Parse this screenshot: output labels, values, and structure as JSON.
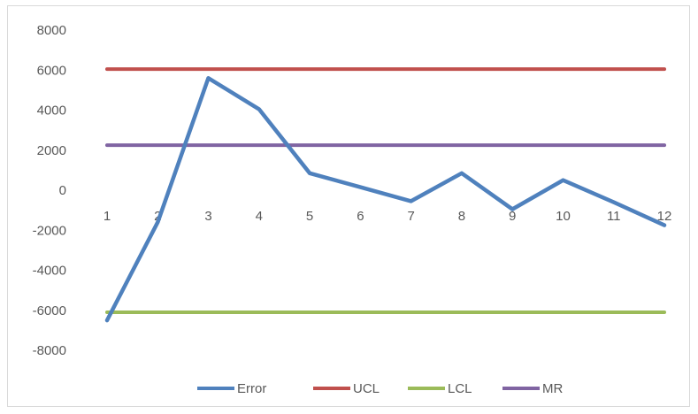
{
  "chart_data": {
    "type": "line",
    "title": "",
    "xlabel": "",
    "ylabel": "",
    "categories": [
      "1",
      "2",
      "3",
      "4",
      "5",
      "6",
      "7",
      "8",
      "9",
      "10",
      "11",
      "12"
    ],
    "ylim": [
      -8000,
      8000
    ],
    "yticks": [
      "8000",
      "6000",
      "4000",
      "2000",
      "0",
      "-2000",
      "-4000",
      "-6000",
      "-8000"
    ],
    "grid": false,
    "legend_position": "bottom",
    "series": [
      {
        "name": "Error",
        "color": "#4f81bd",
        "values": [
          -6500,
          -1600,
          5600,
          4050,
          850,
          150,
          -550,
          850,
          -950,
          500,
          -600,
          -1750
        ]
      },
      {
        "name": "UCL",
        "color": "#c0504d",
        "values": [
          6050,
          6050,
          6050,
          6050,
          6050,
          6050,
          6050,
          6050,
          6050,
          6050,
          6050,
          6050
        ]
      },
      {
        "name": "LCL",
        "color": "#9bbb59",
        "values": [
          -6100,
          -6100,
          -6100,
          -6100,
          -6100,
          -6100,
          -6100,
          -6100,
          -6100,
          -6100,
          -6100,
          -6100
        ]
      },
      {
        "name": "MR",
        "color": "#8064a2",
        "values": [
          2250,
          2250,
          2250,
          2250,
          2250,
          2250,
          2250,
          2250,
          2250,
          2250,
          2250,
          2250
        ]
      }
    ]
  }
}
